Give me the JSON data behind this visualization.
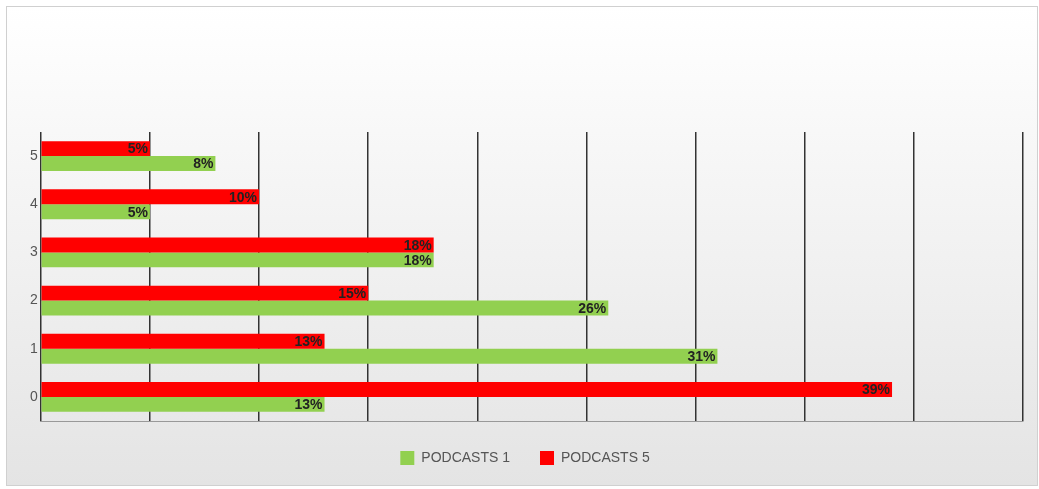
{
  "chart_data": {
    "type": "bar",
    "orientation": "horizontal",
    "categories": [
      "5",
      "4",
      "3",
      "2",
      "1",
      "0"
    ],
    "series": [
      {
        "name": "PODCASTS 1",
        "color": "#92d050",
        "values": [
          8,
          5,
          18,
          26,
          31,
          13
        ],
        "value_labels": [
          "8%",
          "5%",
          "18%",
          "26%",
          "31%",
          "13%"
        ]
      },
      {
        "name": "PODCASTS 5",
        "color": "#ff0000",
        "values": [
          5,
          10,
          18,
          15,
          13,
          39
        ],
        "value_labels": [
          "5%",
          "10%",
          "18%",
          "15%",
          "13%",
          "39%"
        ]
      }
    ],
    "data_labels": true,
    "grid": "x",
    "legend": "bottom",
    "tick_labels": "y"
  }
}
